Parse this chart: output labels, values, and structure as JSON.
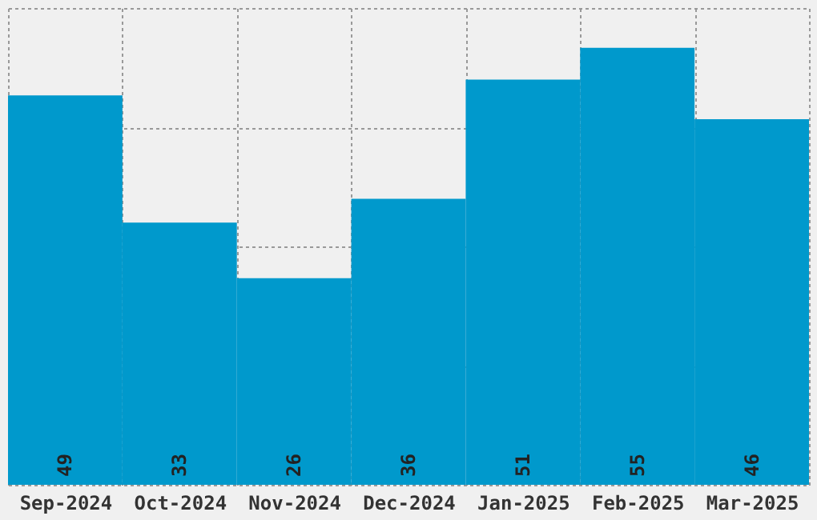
{
  "chart_data": {
    "type": "bar",
    "categories": [
      "Sep-2024",
      "Oct-2024",
      "Nov-2024",
      "Dec-2024",
      "Jan-2025",
      "Feb-2025",
      "Mar-2025"
    ],
    "values": [
      49,
      33,
      26,
      36,
      51,
      55,
      46
    ],
    "color": "#0099cc",
    "ylim": [
      0,
      60
    ],
    "yticks": [
      0,
      15,
      30,
      45,
      60
    ],
    "grid": true,
    "data_labels": true,
    "tick_labels": "x"
  }
}
